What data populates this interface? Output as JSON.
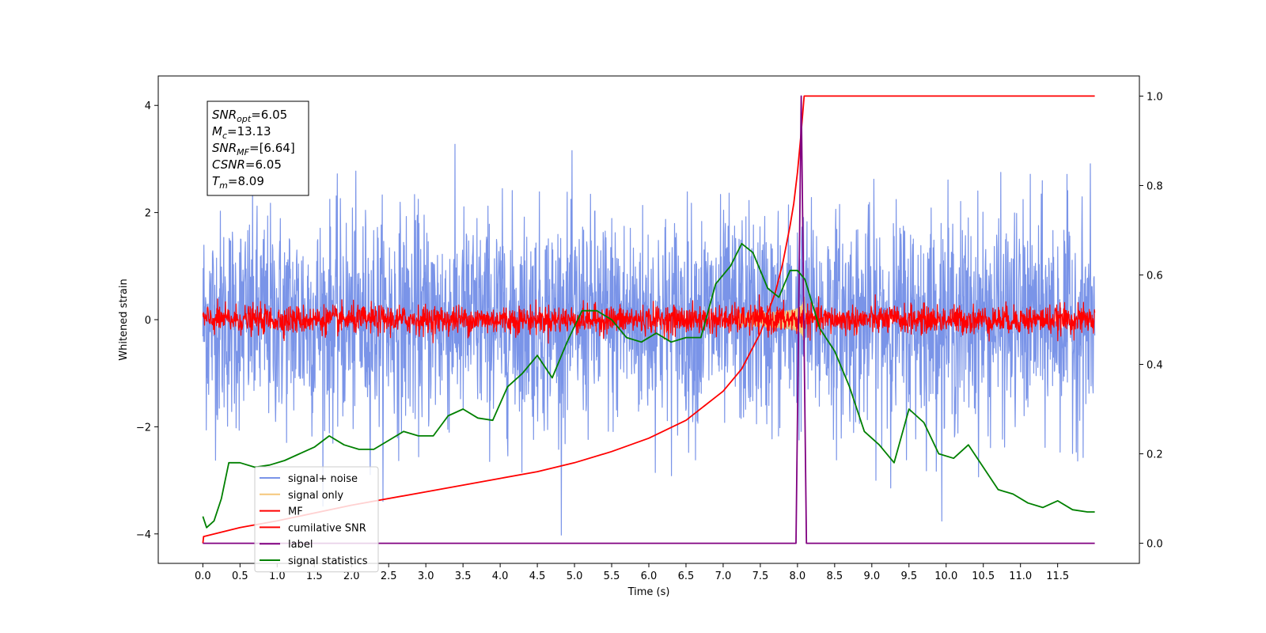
{
  "chart_data": {
    "type": "line",
    "xlabel": "Time (s)",
    "ylabel": "Whitened strain",
    "xlim": [
      -0.6,
      12.6
    ],
    "ylim": [
      -4.55,
      4.55
    ],
    "y2lim": [
      -0.045,
      1.045
    ],
    "x_ticks": [
      "0.0",
      "0.5",
      "1.0",
      "1.5",
      "2.0",
      "2.5",
      "3.0",
      "3.5",
      "4.0",
      "4.5",
      "5.0",
      "5.5",
      "6.0",
      "6.5",
      "7.0",
      "7.5",
      "8.0",
      "8.5",
      "9.0",
      "9.5",
      "10.0",
      "10.5",
      "11.0",
      "11.5"
    ],
    "y_ticks": [
      -4,
      -2,
      0,
      2,
      4
    ],
    "y2_ticks": [
      "0.0",
      "0.2",
      "0.4",
      "0.6",
      "0.8",
      "1.0"
    ],
    "grid": false,
    "legend_position": "lower-left",
    "info_box": [
      {
        "base": "SNR",
        "sub": "opt",
        "value": "=6.05"
      },
      {
        "base": "M",
        "sub": "c",
        "value": "=13.13"
      },
      {
        "base": "SNR",
        "sub": "MF",
        "value": "=[6.64]"
      },
      {
        "base": "CSNR",
        "sub": "",
        "value": "=6.05"
      },
      {
        "base": "T",
        "sub": "m",
        "value": "=8.09"
      }
    ],
    "series": [
      {
        "name": "signal+ noise",
        "color": "#7a94e8",
        "axis": "left",
        "kind": "noise",
        "sigma": 1.0,
        "x_range": [
          0,
          12
        ]
      },
      {
        "name": "signal only",
        "color": "#f5c77a",
        "axis": "left",
        "kind": "chirp",
        "merger_time": 8.09,
        "peak_amplitude": 0.45
      },
      {
        "name": "MF",
        "color": "#ff0000",
        "axis": "left",
        "kind": "noise",
        "sigma": 0.13,
        "x_range": [
          0,
          12
        ]
      },
      {
        "name": "cumilative SNR",
        "color": "#ff0000",
        "axis": "right",
        "x": [
          0.0,
          0.01,
          0.5,
          1.0,
          2.0,
          3.0,
          4.0,
          4.5,
          5.0,
          5.5,
          6.0,
          6.5,
          7.0,
          7.25,
          7.5,
          7.7,
          7.8,
          7.9,
          7.95,
          8.0,
          8.05,
          8.09,
          12.0
        ],
        "y": [
          0.0,
          0.015,
          0.035,
          0.05,
          0.085,
          0.115,
          0.145,
          0.16,
          0.18,
          0.205,
          0.235,
          0.275,
          0.34,
          0.39,
          0.47,
          0.56,
          0.625,
          0.71,
          0.76,
          0.83,
          0.92,
          1.0,
          1.0
        ]
      },
      {
        "name": "label",
        "color": "#800080",
        "axis": "right",
        "x": [
          0.0,
          7.98,
          8.05,
          8.12,
          12.0
        ],
        "y": [
          0.0,
          0.0,
          1.0,
          0.0,
          0.0
        ]
      },
      {
        "name": "signal statistics",
        "color": "#008000",
        "axis": "right",
        "x": [
          0.0,
          0.05,
          0.15,
          0.25,
          0.35,
          0.5,
          0.7,
          0.9,
          1.1,
          1.3,
          1.5,
          1.7,
          1.9,
          2.1,
          2.3,
          2.5,
          2.7,
          2.9,
          3.1,
          3.3,
          3.5,
          3.7,
          3.9,
          4.1,
          4.3,
          4.5,
          4.7,
          4.9,
          5.1,
          5.3,
          5.5,
          5.7,
          5.9,
          6.1,
          6.3,
          6.5,
          6.7,
          6.9,
          7.1,
          7.25,
          7.4,
          7.6,
          7.75,
          7.9,
          8.0,
          8.1,
          8.3,
          8.5,
          8.7,
          8.9,
          9.1,
          9.3,
          9.5,
          9.7,
          9.9,
          10.1,
          10.3,
          10.5,
          10.7,
          10.9,
          11.1,
          11.3,
          11.5,
          11.7,
          11.9,
          12.0
        ],
        "y": [
          0.06,
          0.035,
          0.05,
          0.1,
          0.18,
          0.18,
          0.17,
          0.175,
          0.185,
          0.2,
          0.215,
          0.24,
          0.22,
          0.21,
          0.21,
          0.23,
          0.25,
          0.24,
          0.24,
          0.285,
          0.3,
          0.28,
          0.275,
          0.35,
          0.38,
          0.42,
          0.37,
          0.45,
          0.52,
          0.52,
          0.5,
          0.46,
          0.45,
          0.47,
          0.45,
          0.46,
          0.46,
          0.58,
          0.62,
          0.67,
          0.65,
          0.57,
          0.55,
          0.61,
          0.61,
          0.59,
          0.48,
          0.43,
          0.35,
          0.25,
          0.22,
          0.18,
          0.3,
          0.27,
          0.2,
          0.19,
          0.22,
          0.17,
          0.12,
          0.11,
          0.09,
          0.08,
          0.095,
          0.075,
          0.07,
          0.07
        ]
      }
    ]
  }
}
